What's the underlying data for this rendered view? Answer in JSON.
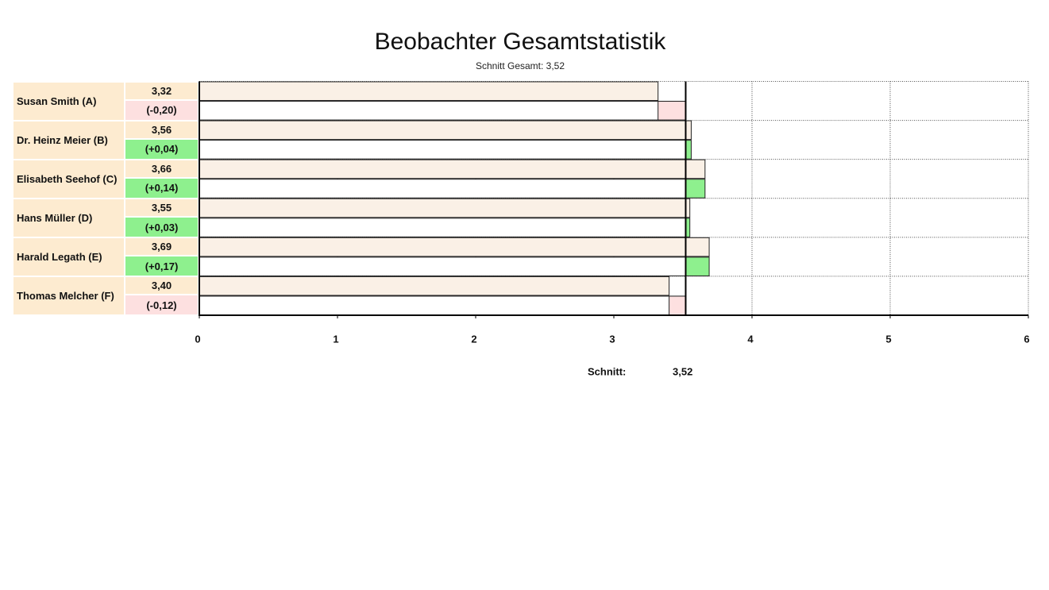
{
  "chart_data": {
    "type": "bar",
    "title": "Beobachter Gesamtstatistik",
    "subtitle": "Schnitt Gesamt: 3,52",
    "categories": [
      "Susan Smith (A)",
      "Dr. Heinz Meier (B)",
      "Elisabeth Seehof (C)",
      "Hans Müller (D)",
      "Harald Legath (E)",
      "Thomas Melcher (F)"
    ],
    "values": [
      3.32,
      3.56,
      3.66,
      3.55,
      3.69,
      3.4
    ],
    "value_labels": [
      "3,32",
      "3,56",
      "3,66",
      "3,55",
      "3,69",
      "3,40"
    ],
    "deviations": [
      -0.2,
      0.04,
      0.14,
      0.03,
      0.17,
      -0.12
    ],
    "deviation_labels": [
      "(-0,20)",
      "(+0,04)",
      "(+0,14)",
      "(+0,03)",
      "(+0,17)",
      "(-0,12)"
    ],
    "mean": 3.52,
    "mean_name": "Schnitt:",
    "mean_label": "3,52",
    "xlim": [
      0,
      6
    ],
    "xticks": [
      0,
      1,
      2,
      3,
      4,
      5,
      6
    ],
    "grid": true,
    "color": "#faf0e6",
    "label_color": "#fdebd0",
    "positive_color": "#8ef08e",
    "negative_color": "#fde0e0"
  }
}
